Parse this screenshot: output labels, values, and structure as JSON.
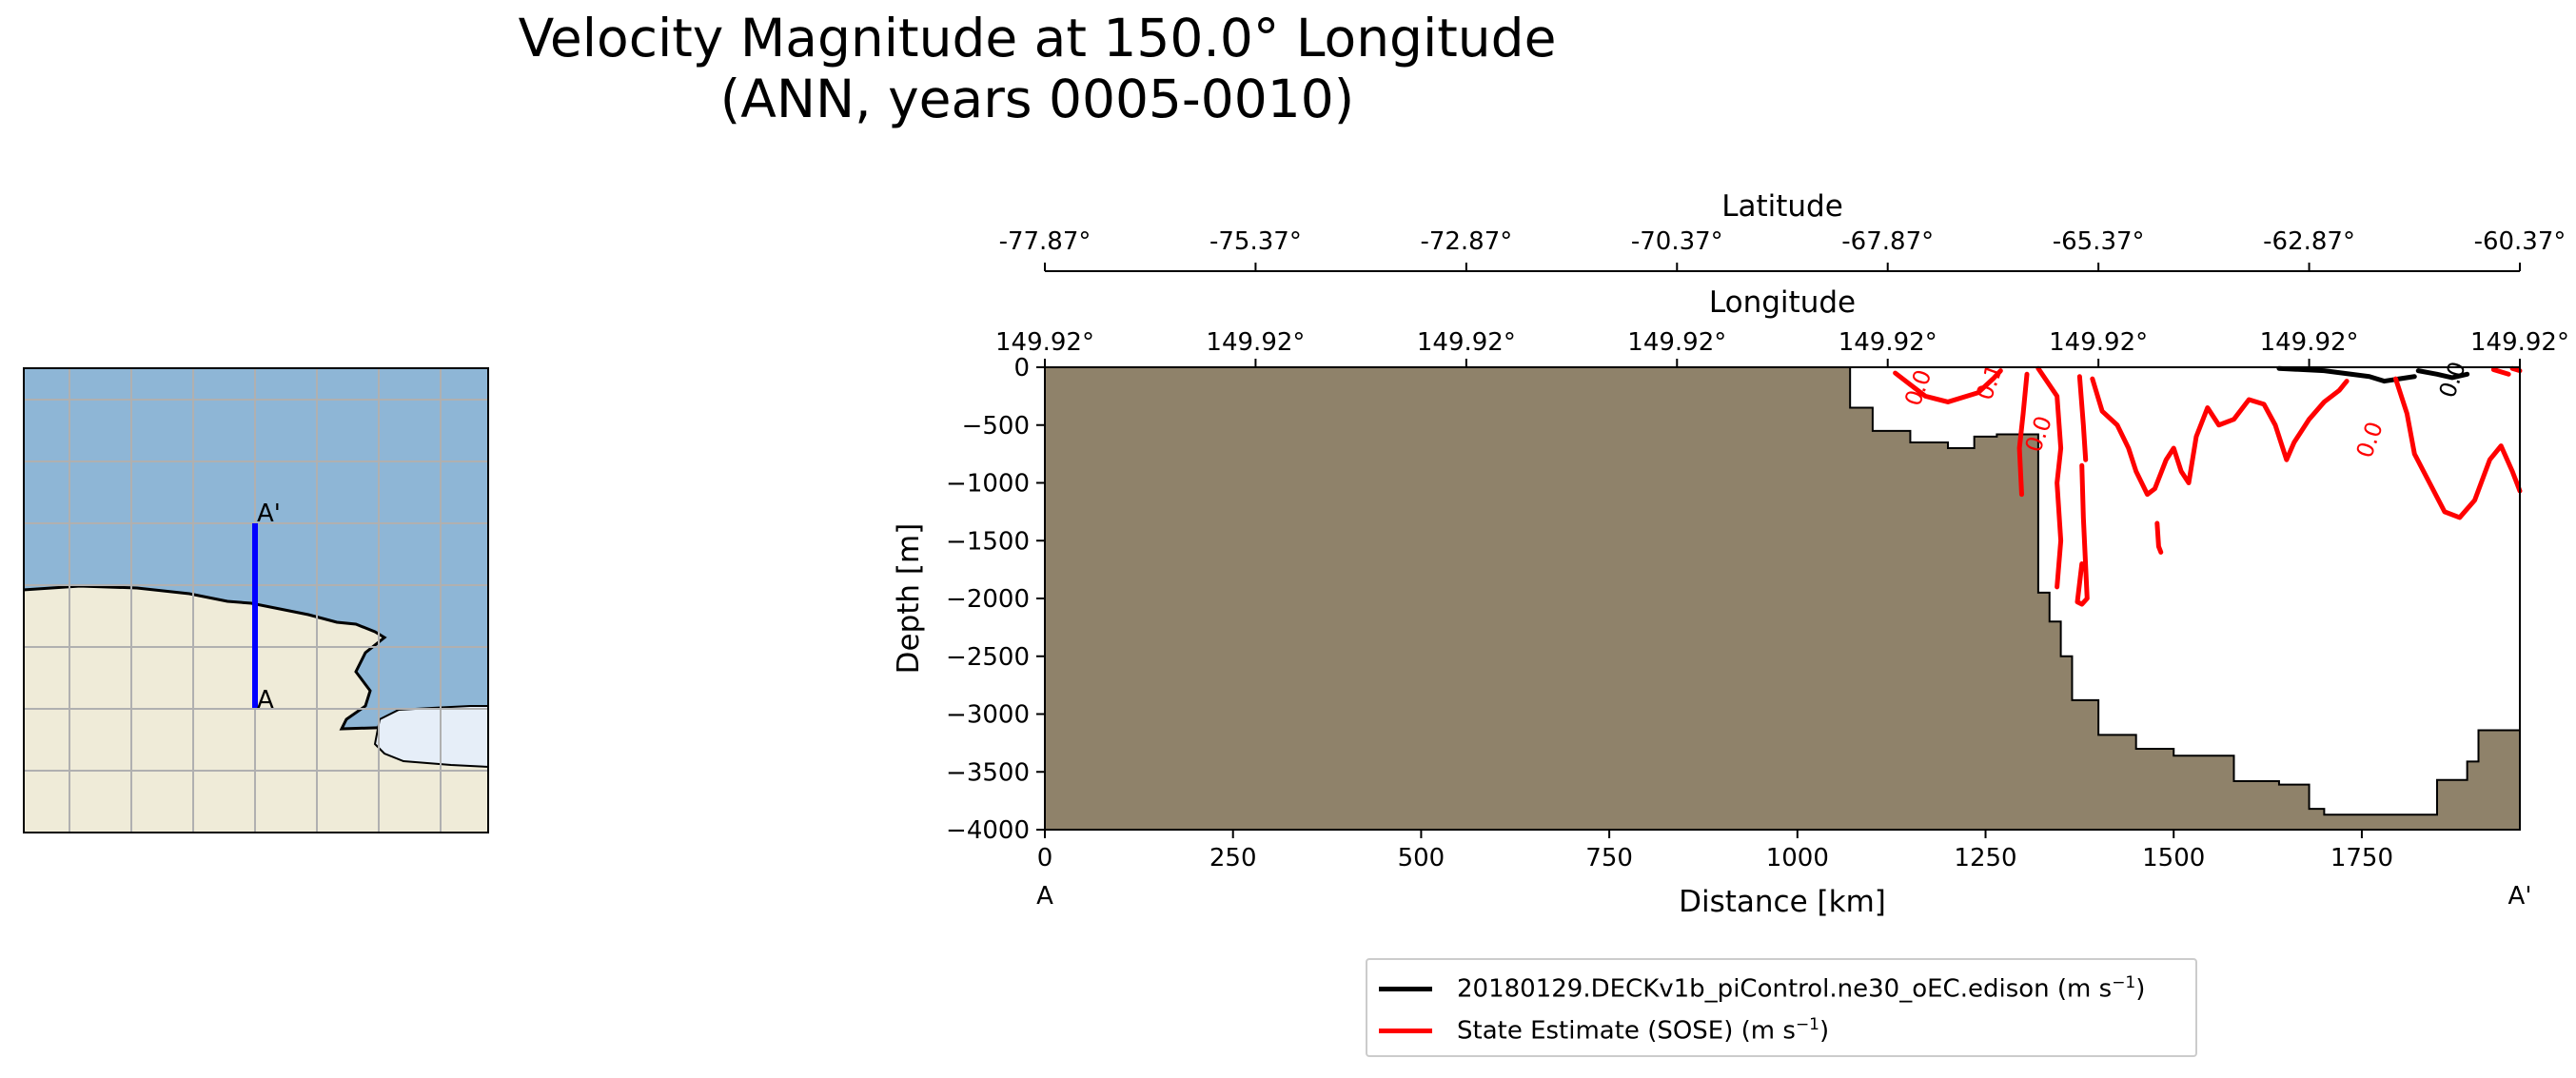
{
  "title_line1": "Velocity Magnitude at 150.0° Longitude",
  "title_line2": "(ANN, years 0005-0010)",
  "map": {
    "endpoint_start": "A",
    "endpoint_end": "A'",
    "transect_color": "#0000ff",
    "land_color": "#efebd8",
    "ocean_color": "#8eb6d6",
    "ice_color": "#e6eef8"
  },
  "chart_data": {
    "type": "line",
    "xlabel": "Distance [km]",
    "ylabel": "Depth [m]",
    "xlim": [
      0,
      1960
    ],
    "ylim": [
      -4000,
      0
    ],
    "x_ticks": [
      "0",
      "250",
      "500",
      "750",
      "1000",
      "1250",
      "1500",
      "1750"
    ],
    "y_ticks": [
      "0",
      "−500",
      "−1000",
      "−1500",
      "−2000",
      "−2500",
      "−3000",
      "−3500",
      "−4000"
    ],
    "x_tick_values": [
      0,
      250,
      500,
      750,
      1000,
      1250,
      1500,
      1750
    ],
    "y_tick_values": [
      0,
      -500,
      -1000,
      -1500,
      -2000,
      -2500,
      -3000,
      -3500,
      -4000
    ],
    "endpoint_start": "A",
    "endpoint_end": "A'",
    "top_axis_latitude": {
      "label": "Latitude",
      "ticks": [
        "-77.87°",
        "-75.37°",
        "-72.87°",
        "-70.37°",
        "-67.87°",
        "-65.37°",
        "-62.87°",
        "-60.37°"
      ]
    },
    "top_axis_longitude": {
      "label": "Longitude",
      "ticks": [
        "149.92°",
        "149.92°",
        "149.92°",
        "149.92°",
        "149.92°",
        "149.92°",
        "149.92°",
        "149.92°"
      ]
    },
    "seafloor_color": "#8f826a",
    "bathymetry": [
      [
        0,
        0
      ],
      [
        1070,
        0
      ],
      [
        1070,
        -350
      ],
      [
        1100,
        -350
      ],
      [
        1100,
        -550
      ],
      [
        1150,
        -550
      ],
      [
        1150,
        -650
      ],
      [
        1200,
        -650
      ],
      [
        1200,
        -700
      ],
      [
        1235,
        -700
      ],
      [
        1235,
        -600
      ],
      [
        1265,
        -600
      ],
      [
        1265,
        -580
      ],
      [
        1320,
        -580
      ],
      [
        1320,
        -1950
      ],
      [
        1335,
        -1950
      ],
      [
        1335,
        -2200
      ],
      [
        1350,
        -2200
      ],
      [
        1350,
        -2500
      ],
      [
        1365,
        -2500
      ],
      [
        1365,
        -2880
      ],
      [
        1400,
        -2880
      ],
      [
        1400,
        -3180
      ],
      [
        1450,
        -3180
      ],
      [
        1450,
        -3300
      ],
      [
        1500,
        -3300
      ],
      [
        1500,
        -3360
      ],
      [
        1580,
        -3360
      ],
      [
        1580,
        -3580
      ],
      [
        1640,
        -3580
      ],
      [
        1640,
        -3610
      ],
      [
        1680,
        -3610
      ],
      [
        1680,
        -3820
      ],
      [
        1700,
        -3820
      ],
      [
        1700,
        -3870
      ],
      [
        1850,
        -3870
      ],
      [
        1850,
        -3570
      ],
      [
        1890,
        -3570
      ],
      [
        1890,
        -3410
      ],
      [
        1905,
        -3410
      ],
      [
        1905,
        -3140
      ],
      [
        1960,
        -3140
      ],
      [
        1960,
        -4000
      ],
      [
        0,
        -4000
      ]
    ],
    "series": [
      {
        "name": "20180129.DECKv1b_piControl.ne30_oEC.edison",
        "color": "#000000",
        "lines": [
          [
            [
              1640,
              -10
            ],
            [
              1700,
              -30
            ],
            [
              1760,
              -80
            ],
            [
              1780,
              -120
            ],
            [
              1800,
              -100
            ],
            [
              1820,
              -80
            ]
          ],
          [
            [
              1825,
              -30
            ],
            [
              1850,
              -60
            ],
            [
              1870,
              -90
            ],
            [
              1890,
              -60
            ]
          ]
        ]
      },
      {
        "name": "State Estimate (SOSE)",
        "color": "#ff0000",
        "lines": [
          [
            [
              1130,
              -50
            ],
            [
              1150,
              -150
            ],
            [
              1170,
              -250
            ],
            [
              1200,
              -300
            ],
            [
              1240,
              -220
            ],
            [
              1260,
              -100
            ],
            [
              1270,
              -30
            ]
          ],
          [
            [
              1305,
              -60
            ],
            [
              1300,
              -400
            ],
            [
              1295,
              -700
            ],
            [
              1298,
              -1100
            ]
          ],
          [
            [
              1320,
              -10
            ],
            [
              1345,
              -250
            ],
            [
              1350,
              -700
            ],
            [
              1345,
              -1000
            ],
            [
              1350,
              -1500
            ],
            [
              1345,
              -1900
            ]
          ],
          [
            [
              1375,
              -80
            ],
            [
              1380,
              -500
            ],
            [
              1383,
              -800
            ]
          ],
          [
            [
              1378,
              -850
            ],
            [
              1380,
              -1300
            ],
            [
              1385,
              -2000
            ],
            [
              1378,
              -2050
            ],
            [
              1372,
              -2030
            ],
            [
              1378,
              -1700
            ]
          ],
          [
            [
              1392,
              -100
            ],
            [
              1405,
              -380
            ],
            [
              1425,
              -500
            ],
            [
              1440,
              -700
            ],
            [
              1450,
              -900
            ],
            [
              1465,
              -1100
            ],
            [
              1475,
              -1050
            ],
            [
              1490,
              -800
            ],
            [
              1500,
              -700
            ],
            [
              1510,
              -900
            ],
            [
              1520,
              -1000
            ],
            [
              1530,
              -600
            ],
            [
              1545,
              -350
            ],
            [
              1560,
              -500
            ],
            [
              1580,
              -450
            ],
            [
              1600,
              -280
            ],
            [
              1620,
              -320
            ],
            [
              1635,
              -500
            ],
            [
              1650,
              -800
            ],
            [
              1660,
              -650
            ],
            [
              1680,
              -450
            ],
            [
              1700,
              -300
            ],
            [
              1720,
              -200
            ],
            [
              1730,
              -120
            ]
          ],
          [
            [
              1478,
              -1350
            ],
            [
              1480,
              -1550
            ],
            [
              1483,
              -1600
            ]
          ],
          [
            [
              1795,
              -100
            ],
            [
              1810,
              -400
            ],
            [
              1820,
              -750
            ],
            [
              1840,
              -1000
            ],
            [
              1860,
              -1250
            ],
            [
              1880,
              -1300
            ],
            [
              1900,
              -1150
            ],
            [
              1920,
              -800
            ],
            [
              1935,
              -680
            ],
            [
              1950,
              -900
            ],
            [
              1960,
              -1070
            ]
          ],
          [
            [
              1925,
              -20
            ],
            [
              1945,
              -60
            ]
          ],
          [
            [
              1950,
              -10
            ],
            [
              1960,
              -30
            ]
          ]
        ]
      }
    ],
    "contour_labels": [
      {
        "text": "0.0",
        "x": 1170,
        "y": -200,
        "color": "#ff0000"
      },
      {
        "text": "0.0",
        "x": 1330,
        "y": -600,
        "color": "#ff0000"
      },
      {
        "text": "0.1",
        "x": 1265,
        "y": -150,
        "color": "#ff0000"
      },
      {
        "text": "0.0",
        "x": 1770,
        "y": -650,
        "color": "#ff0000"
      },
      {
        "text": "0.0",
        "x": 1880,
        "y": -130,
        "color": "#000000"
      }
    ]
  },
  "legend": {
    "model_label": "20180129.DECKv1b_piControl.ne30_oEC.edison (m s",
    "obs_label": "State Estimate (SOSE) (m s",
    "unit_exponent": "−1",
    "unit_close": ")"
  }
}
